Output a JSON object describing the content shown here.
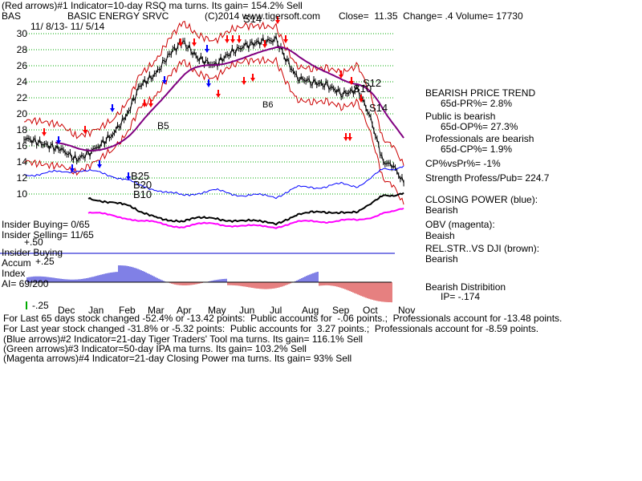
{
  "header": {
    "line1": "(Red arrows)#1 Indicator=10-day RSQ ma turns. Its gain= 154.2% Sell",
    "symbol": "BAS",
    "company": "BASIC ENERGY SRVC",
    "copyright": "(C)2014 www.tigersoft.com",
    "quote": "Close=  11.35  Change= .4 Volume= 17730",
    "date_range": "11/ 8/13- 11/ 5/14"
  },
  "chart_data": {
    "type": "line",
    "title": "BASIC ENERGY SRVC",
    "y_ticks": [
      "30",
      "28",
      "26",
      "24",
      "22",
      "20",
      "18",
      "16",
      "14",
      "12",
      "10"
    ],
    "ylim": [
      9,
      31
    ],
    "x_ticks": [
      "Dec",
      "Jan",
      "Feb",
      "Mar",
      "Apr",
      "May",
      "Jun",
      "Jul",
      "Aug",
      "Sep",
      "Oct",
      "Nov"
    ],
    "grid": true,
    "price_close_points": [
      {
        "x": "Nov 8",
        "y": 17.0
      },
      {
        "x": "Dec 1",
        "y": 15.5
      },
      {
        "x": "Dec 15",
        "y": 14.3
      },
      {
        "x": "Jan 2",
        "y": 15.5
      },
      {
        "x": "Jan 20",
        "y": 17.5
      },
      {
        "x": "Feb 3",
        "y": 19.5
      },
      {
        "x": "Feb 17",
        "y": 23.5
      },
      {
        "x": "Mar 3",
        "y": 25.0
      },
      {
        "x": "Mar 17",
        "y": 27.5
      },
      {
        "x": "Apr 1",
        "y": 29.0
      },
      {
        "x": "Apr 15",
        "y": 27.0
      },
      {
        "x": "May 1",
        "y": 26.0
      },
      {
        "x": "May 15",
        "y": 27.5
      },
      {
        "x": "Jun 1",
        "y": 28.5
      },
      {
        "x": "Jun 15",
        "y": 29.0
      },
      {
        "x": "Jul 1",
        "y": 29.2
      },
      {
        "x": "Jul 10",
        "y": 27.0
      },
      {
        "x": "Jul 20",
        "y": 24.5
      },
      {
        "x": "Aug 5",
        "y": 24.0
      },
      {
        "x": "Aug 20",
        "y": 23.5
      },
      {
        "x": "Sep 5",
        "y": 22.5
      },
      {
        "x": "Sep 20",
        "y": 23.0
      },
      {
        "x": "Oct 1",
        "y": 20.0
      },
      {
        "x": "Oct 15",
        "y": 14.0
      },
      {
        "x": "Oct 25",
        "y": 13.5
      },
      {
        "x": "Nov 5",
        "y": 11.35
      }
    ],
    "signal_labels": [
      "S14",
      "S12",
      "S10",
      "S14",
      "B5",
      "B25",
      "B20",
      "B10",
      "B6"
    ],
    "lower_panel": {
      "label": "Insider Buying",
      "ticks": [
        "+.25",
        "-.25"
      ],
      "accum_index_label": "Accum\nIndex",
      "ai_value": "AI= 69/200"
    },
    "insider_text": [
      "Insider Buying= 0/65",
      "Insider Selling= 11/65",
      "+.50"
    ]
  },
  "sidebar": {
    "trend_title": "BEARISH PRICE TREND",
    "trend_value": "65d-PR%= 2.8%",
    "public_title": "Public is bearish",
    "public_value": "65d-OP%= 27.3%",
    "prof_title": "Professionals are bearish",
    "prof_value": "65d-CP%= 1.9%",
    "cpvspr": "CP%vsPr%= -1%",
    "strength": "Strength Profess/Pub= 224.7",
    "closing_power": "CLOSING POWER (blue):",
    "closing_power_value": "Bearish",
    "obv": "OBV (magenta):",
    "obv_value": "Beaish",
    "relstr": "REL.STR..VS DJI (brown):",
    "relstr_value": "Bearish",
    "distribution": "Bearish Distribition",
    "ip": "IP= -.174"
  },
  "footer": {
    "line1": "For Last 65 days stock changed -52.4% or -13.42 points:  Public accounts for  -.06 points.;  Professionals account for -13.48 points.",
    "line2": "For Last year stock changed -31.8% or -5.32 points:  Public accounts for  3.27 points.;  Professionals account for -8.59 points.",
    "line3": "(Blue arrows)#2 Indicator=21-day Tiger Traders' Tool ma turns. Its gain= 116.1% Sell",
    "line4": "(Green arrows)#3 Indicator=50-day IPA ma turns. Its gain= 103.2% Sell",
    "line5": "(Magenta arrows)#4 Indicator=21-day Closing Power ma turns. Its gain= 93% Sell"
  },
  "colors": {
    "grid": "#00aa00",
    "price": "#000000",
    "ma_long": "#800080",
    "envelope": "#cc0000",
    "closing_power": "#0000ff",
    "obv": "#ff00ff",
    "relstr": "#000000",
    "accum_pos": "#0000cc",
    "accum_neg": "#cc0000",
    "divider": "#0000cc",
    "arrow_red": "#ff0000",
    "arrow_blue": "#0000ff"
  }
}
